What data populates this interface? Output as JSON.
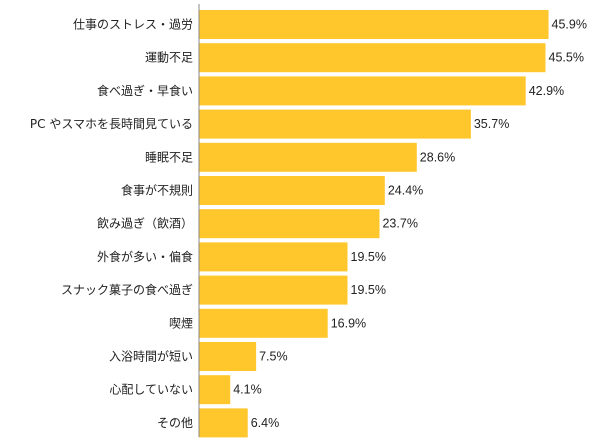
{
  "chart_data": {
    "type": "bar",
    "orientation": "horizontal",
    "categories": [
      "仕事のストレス・過労",
      "運動不足",
      "食べ過ぎ・早食い",
      "PC やスマホを長時間見ている",
      "睡眠不足",
      "食事が不規則",
      "飲み過ぎ（飲酒）",
      "外食が多い・偏食",
      "スナック菓子の食べ過ぎ",
      "喫煙",
      "入浴時間が短い",
      "心配していない",
      "その他"
    ],
    "values": [
      45.9,
      45.5,
      42.9,
      35.7,
      28.6,
      24.4,
      23.7,
      19.5,
      19.5,
      16.9,
      7.5,
      4.1,
      6.4
    ],
    "value_labels": [
      "45.9%",
      "45.5%",
      "42.9%",
      "35.7%",
      "28.6%",
      "24.4%",
      "23.7%",
      "19.5%",
      "19.5%",
      "16.9%",
      "7.5%",
      "4.1%",
      "6.4%"
    ],
    "xlim": [
      0,
      52
    ],
    "grid": false,
    "colors": {
      "bar": "#FFC72C",
      "axis": "#888888",
      "text": "#222222"
    }
  }
}
